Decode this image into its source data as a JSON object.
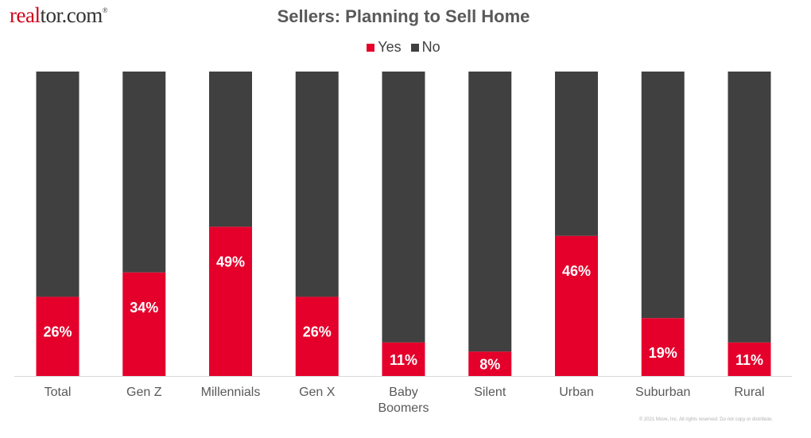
{
  "logo": {
    "text_a": "real",
    "text_b": "tor.com",
    "mark": "®"
  },
  "footer": "© 2021 Move, Inc. All rights reserved. Do not copy or distribute.",
  "colors": {
    "yes": "#e4002b",
    "no": "#404040"
  },
  "chart_data": {
    "type": "bar",
    "stacked": true,
    "title": "Sellers: Planning to Sell Home",
    "categories": [
      [
        "Total"
      ],
      [
        "Gen Z"
      ],
      [
        "Millennials"
      ],
      [
        "Gen X"
      ],
      [
        "Baby",
        "Boomers"
      ],
      [
        "Silent"
      ],
      [
        "Urban"
      ],
      [
        "Suburban"
      ],
      [
        "Rural"
      ]
    ],
    "series": [
      {
        "name": "Yes",
        "values": [
          26,
          34,
          49,
          26,
          11,
          8,
          46,
          19,
          11
        ],
        "data_labels": [
          "26%",
          "34%",
          "49%",
          "26%",
          "11%",
          "8%",
          "46%",
          "19%",
          "11%"
        ]
      },
      {
        "name": "No",
        "values": [
          74,
          66,
          51,
          74,
          89,
          92,
          54,
          81,
          89
        ]
      }
    ],
    "ylim": [
      0,
      100
    ],
    "legend": "top-center",
    "grid": false
  }
}
